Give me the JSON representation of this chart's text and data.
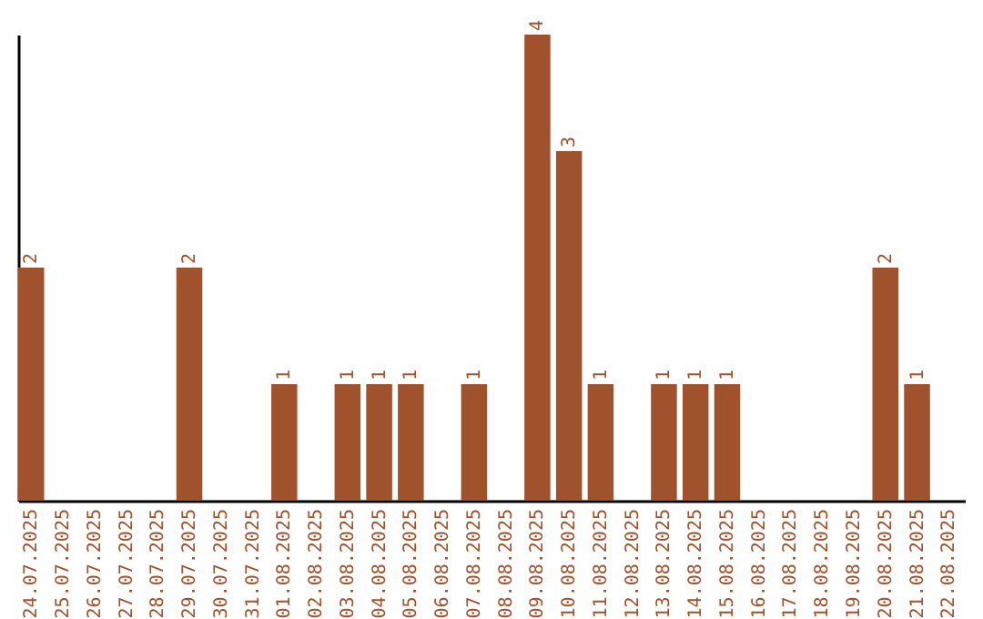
{
  "chart_data": {
    "type": "bar",
    "categories": [
      "24.07.2025",
      "25.07.2025",
      "26.07.2025",
      "27.07.2025",
      "28.07.2025",
      "29.07.2025",
      "30.07.2025",
      "31.07.2025",
      "01.08.2025",
      "02.08.2025",
      "03.08.2025",
      "04.08.2025",
      "05.08.2025",
      "06.08.2025",
      "07.08.2025",
      "08.08.2025",
      "09.08.2025",
      "10.08.2025",
      "11.08.2025",
      "12.08.2025",
      "13.08.2025",
      "14.08.2025",
      "15.08.2025",
      "16.08.2025",
      "17.08.2025",
      "18.08.2025",
      "19.08.2025",
      "20.08.2025",
      "21.08.2025",
      "22.08.2025"
    ],
    "values": [
      2,
      0,
      0,
      0,
      0,
      2,
      0,
      0,
      1,
      0,
      1,
      1,
      1,
      0,
      1,
      0,
      4,
      3,
      1,
      0,
      1,
      1,
      1,
      0,
      0,
      0,
      0,
      2,
      1,
      0
    ],
    "value_labels": [
      "2",
      null,
      null,
      null,
      null,
      "2",
      null,
      null,
      "1",
      null,
      "1",
      "1",
      "1",
      null,
      "1",
      null,
      "4",
      "3",
      "1",
      null,
      "1",
      "1",
      "1",
      null,
      null,
      null,
      null,
      "2",
      "1",
      null
    ],
    "color": "#a0522d",
    "grid": false,
    "tick_labels": "x"
  }
}
